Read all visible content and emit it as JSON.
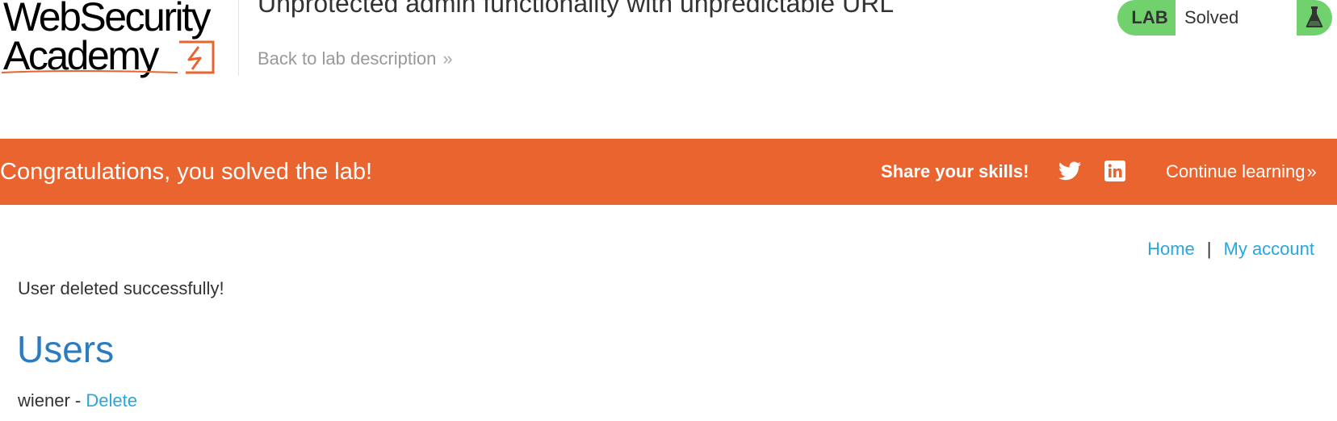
{
  "header": {
    "logo": {
      "line1": "WebSecurity",
      "line2": "Academy"
    },
    "lab_title": "Unprotected admin functionality with unpredictable URL",
    "back_link": "Back to lab description",
    "back_chevron": "»",
    "lab_badge": {
      "label": "LAB",
      "status": "Solved",
      "icon": "flask-icon",
      "color": "#70d16d"
    }
  },
  "banner": {
    "message": "Congratulations, you solved the lab!",
    "share_label": "Share your skills!",
    "share_icons": [
      "twitter-icon",
      "linkedin-icon"
    ],
    "continue_label": "Continue learning",
    "continue_chevron": "»",
    "color": "#ea6430"
  },
  "nav": {
    "home": "Home",
    "separator": "|",
    "my_account": "My account"
  },
  "content": {
    "message": "User deleted successfully!",
    "heading": "Users",
    "users": [
      {
        "name": "wiener",
        "separator": " - ",
        "action": "Delete"
      }
    ]
  },
  "colors": {
    "link": "#29a6df",
    "heading": "#2b7bc0",
    "logo_accent": "#ea6430"
  }
}
